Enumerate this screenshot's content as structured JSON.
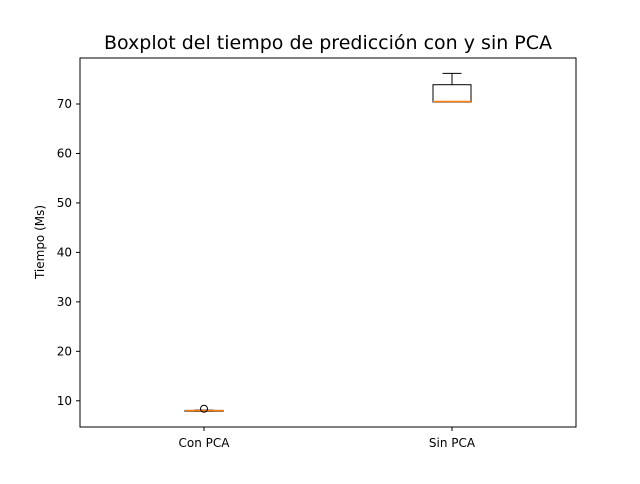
{
  "chart_data": {
    "type": "boxplot",
    "title": "Boxplot del tiempo de predicción con y sin PCA",
    "xlabel": "",
    "ylabel": "Tiempo (Ms)",
    "categories": [
      "Con PCA",
      "Sin PCA"
    ],
    "ylim": [
      4.7,
      79.3
    ],
    "yticks": [
      10,
      20,
      30,
      40,
      50,
      60,
      70
    ],
    "grid": false,
    "boxes": [
      {
        "category": "Con PCA",
        "whisker_low": 7.9,
        "q1": 7.95,
        "median": 8.0,
        "q3": 8.05,
        "whisker_high": 8.1,
        "outliers": [
          8.4
        ]
      },
      {
        "category": "Sin PCA",
        "whisker_low": 70.4,
        "q1": 70.4,
        "median": 70.5,
        "q3": 73.9,
        "whisker_high": 76.2,
        "outliers": []
      }
    ],
    "colors": {
      "box": "#000000",
      "median": "#ff7f0e",
      "frame": "#000000"
    }
  }
}
